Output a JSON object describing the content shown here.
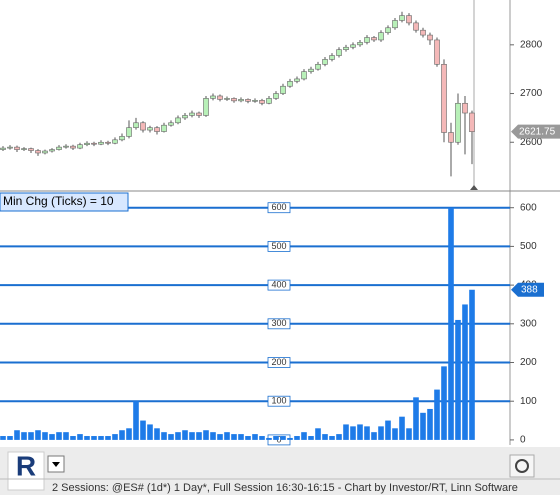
{
  "chart_data": [
    {
      "type": "candlestick",
      "up_color": "#b8f0b8",
      "down_color": "#f4b8b8",
      "ohlc": [
        [
          2585,
          2592,
          2582,
          2588
        ],
        [
          2588,
          2594,
          2585,
          2590
        ],
        [
          2590,
          2593,
          2580,
          2585
        ],
        [
          2585,
          2590,
          2582,
          2587
        ],
        [
          2587,
          2589,
          2578,
          2583
        ],
        [
          2583,
          2586,
          2572,
          2578
        ],
        [
          2578,
          2585,
          2575,
          2582
        ],
        [
          2582,
          2588,
          2579,
          2585
        ],
        [
          2585,
          2594,
          2583,
          2590
        ],
        [
          2590,
          2596,
          2587,
          2592
        ],
        [
          2592,
          2595,
          2584,
          2588
        ],
        [
          2588,
          2599,
          2586,
          2595
        ],
        [
          2595,
          2602,
          2592,
          2598
        ],
        [
          2598,
          2601,
          2592,
          2596
        ],
        [
          2596,
          2604,
          2594,
          2600
        ],
        [
          2600,
          2603,
          2594,
          2598
        ],
        [
          2598,
          2610,
          2596,
          2605
        ],
        [
          2605,
          2618,
          2602,
          2612
        ],
        [
          2612,
          2645,
          2608,
          2630
        ],
        [
          2630,
          2650,
          2626,
          2640
        ],
        [
          2640,
          2643,
          2620,
          2625
        ],
        [
          2625,
          2634,
          2620,
          2630
        ],
        [
          2630,
          2633,
          2616,
          2622
        ],
        [
          2622,
          2640,
          2620,
          2635
        ],
        [
          2635,
          2645,
          2632,
          2640
        ],
        [
          2640,
          2655,
          2637,
          2650
        ],
        [
          2650,
          2660,
          2646,
          2655
        ],
        [
          2655,
          2665,
          2651,
          2660
        ],
        [
          2660,
          2663,
          2650,
          2655
        ],
        [
          2655,
          2695,
          2652,
          2690
        ],
        [
          2690,
          2700,
          2686,
          2695
        ],
        [
          2695,
          2698,
          2684,
          2688
        ],
        [
          2688,
          2694,
          2685,
          2690
        ],
        [
          2690,
          2692,
          2681,
          2685
        ],
        [
          2685,
          2692,
          2682,
          2688
        ],
        [
          2688,
          2690,
          2680,
          2684
        ],
        [
          2684,
          2690,
          2681,
          2686
        ],
        [
          2686,
          2689,
          2676,
          2680
        ],
        [
          2680,
          2695,
          2678,
          2690
        ],
        [
          2690,
          2705,
          2687,
          2700
        ],
        [
          2700,
          2720,
          2697,
          2715
        ],
        [
          2715,
          2730,
          2712,
          2725
        ],
        [
          2725,
          2735,
          2721,
          2730
        ],
        [
          2730,
          2750,
          2727,
          2745
        ],
        [
          2745,
          2755,
          2741,
          2750
        ],
        [
          2750,
          2765,
          2747,
          2760
        ],
        [
          2760,
          2775,
          2756,
          2770
        ],
        [
          2770,
          2783,
          2766,
          2778
        ],
        [
          2778,
          2795,
          2774,
          2790
        ],
        [
          2790,
          2800,
          2786,
          2795
        ],
        [
          2795,
          2805,
          2791,
          2800
        ],
        [
          2800,
          2810,
          2796,
          2805
        ],
        [
          2805,
          2820,
          2801,
          2815
        ],
        [
          2815,
          2818,
          2806,
          2810
        ],
        [
          2810,
          2830,
          2806,
          2825
        ],
        [
          2825,
          2840,
          2821,
          2835
        ],
        [
          2835,
          2855,
          2831,
          2850
        ],
        [
          2850,
          2868,
          2846,
          2860
        ],
        [
          2860,
          2865,
          2840,
          2845
        ],
        [
          2845,
          2850,
          2825,
          2830
        ],
        [
          2830,
          2835,
          2815,
          2820
        ],
        [
          2820,
          2825,
          2800,
          2810
        ],
        [
          2810,
          2815,
          2755,
          2760
        ],
        [
          2760,
          2770,
          2600,
          2620
        ],
        [
          2620,
          2640,
          2530,
          2600
        ],
        [
          2600,
          2700,
          2595,
          2680
        ],
        [
          2680,
          2695,
          2575,
          2660
        ],
        [
          2660,
          2665,
          2555,
          2621.75
        ]
      ],
      "ylim": [
        2502,
        2892
      ],
      "yticks": [
        2600,
        2700,
        2800
      ]
    },
    {
      "type": "bar",
      "annotation": "Min Chg (Ticks) = 10",
      "color": "#1e7be8",
      "values": [
        10,
        10,
        25,
        20,
        20,
        25,
        20,
        15,
        20,
        20,
        10,
        15,
        10,
        10,
        10,
        10,
        15,
        25,
        30,
        100,
        50,
        40,
        30,
        20,
        15,
        20,
        25,
        20,
        20,
        25,
        20,
        15,
        20,
        15,
        15,
        10,
        15,
        10,
        5,
        10,
        10,
        5,
        10,
        20,
        10,
        30,
        15,
        10,
        15,
        40,
        35,
        40,
        35,
        20,
        35,
        50,
        30,
        60,
        30,
        110,
        70,
        80,
        130,
        190,
        600,
        310,
        350,
        388
      ],
      "ylim": [
        -8,
        638
      ],
      "yticks": [
        0,
        100,
        200,
        300,
        400,
        500,
        600
      ],
      "grid": true
    }
  ],
  "status_bar": {
    "logo": "R",
    "text": "2 Sessions: @ES# (1d*) 1 Day*, Full Session 16:30-16:15 - Chart by Investor/RT, Linn Software"
  }
}
